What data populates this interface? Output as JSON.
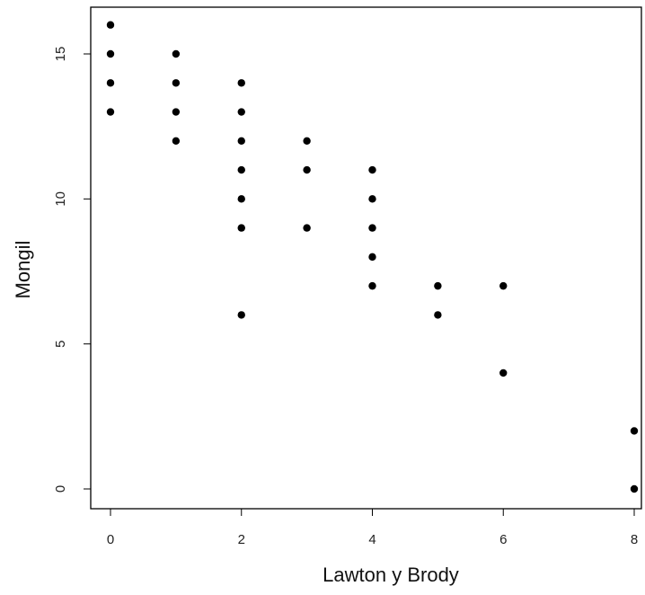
{
  "chart_data": {
    "type": "scatter",
    "title": "",
    "xlabel": "Lawton y Brody",
    "ylabel": "Mongil",
    "xlim": [
      0,
      8
    ],
    "ylim": [
      0,
      16
    ],
    "xticks": [
      0,
      2,
      4,
      6,
      8
    ],
    "xtick_labels": [
      "0",
      "2",
      "4",
      "6",
      "8"
    ],
    "yticks": [
      0,
      5,
      10,
      15
    ],
    "ytick_labels": [
      "0",
      "5",
      "10",
      "15"
    ],
    "grid": false,
    "legend": "none",
    "point_color": "#000000",
    "series": [
      {
        "x": [
          0,
          0,
          0,
          0,
          1,
          1,
          1,
          1,
          2,
          2,
          2,
          2,
          2,
          2,
          2,
          3,
          3,
          3,
          4,
          4,
          4,
          4,
          4,
          5,
          5,
          6,
          6,
          8,
          8
        ],
        "y": [
          16,
          15,
          14,
          13,
          15,
          14,
          13,
          12,
          14,
          13,
          12,
          11,
          10,
          9,
          6,
          12,
          11,
          9,
          11,
          10,
          9,
          8,
          7,
          7,
          6,
          7,
          4,
          2,
          0
        ]
      }
    ]
  }
}
